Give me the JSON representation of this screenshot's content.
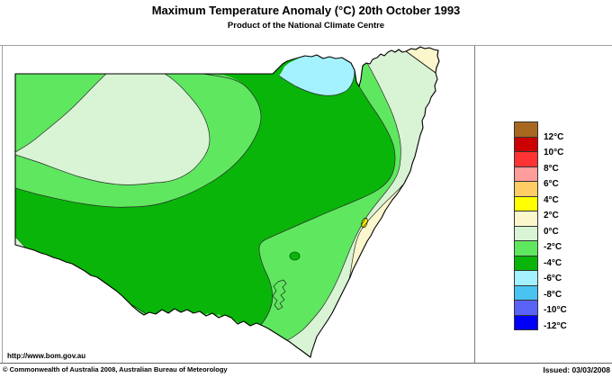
{
  "header": {
    "title": "Maximum Temperature Anomaly (°C)  20th October 1993",
    "subtitle": "Product of the National Climate Centre"
  },
  "legend": {
    "colors": [
      "#A8671E",
      "#CC0000",
      "#FF3333",
      "#FF9C9C",
      "#FFCC66",
      "#FFFF00",
      "#FCF6CC",
      "#D8F4D4",
      "#60E760",
      "#09B509",
      "#A4F2FF",
      "#49C3F2",
      "#5A62F8",
      "#0000FA"
    ],
    "labels": [
      "12°C",
      "10°C",
      "8°C",
      "6°C",
      "4°C",
      "2°C",
      "0°C",
      "-2°C",
      "-4°C",
      "-6°C",
      "-8°C",
      "-10°C",
      "-12°C"
    ]
  },
  "map": {
    "region": "New South Wales",
    "palette": {
      "cream": "#FCF6CC",
      "pale_green": "#D8F4D4",
      "light_green": "#60E760",
      "green": "#09B509",
      "cyan": "#A4F2FF",
      "yellow": "#FFFF00",
      "outline": "#000000",
      "lake": "#444444"
    }
  },
  "footer": {
    "url": "http://www.bom.gov.au",
    "copyright": "© Commonwealth of Australia 2008, Australian Bureau of Meteorology",
    "issued": "Issued: 03/03/2008"
  }
}
